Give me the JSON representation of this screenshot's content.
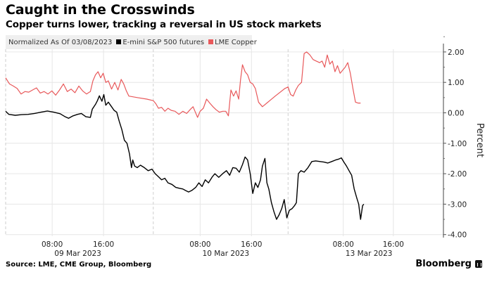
{
  "title": "Caught in the Crosswinds",
  "subtitle": "Copper turns lower, tracking a reversal in US stock markets",
  "legend": {
    "note": "Normalized As Of 03/08/2023",
    "items": [
      {
        "label": "E-mini S&P 500 futures",
        "color": "#000000"
      },
      {
        "label": "LME Copper",
        "color": "#e8585a"
      }
    ]
  },
  "source": "Source: LME, CME Group, Bloomberg",
  "brand": "Bloomberg",
  "chart_data": {
    "type": "line",
    "title": "Caught in the Crosswinds",
    "subtitle": "Copper turns lower, tracking a reversal in US stock markets",
    "xlabel": "",
    "ylabel": "Percent",
    "ylim": [
      -4,
      2.5
    ],
    "yticks": [
      2,
      1,
      0,
      -1,
      -2,
      -3,
      -4
    ],
    "ytick_labels": [
      "2.00",
      "1.00",
      "0.00",
      "-1.00",
      "-2.00",
      "-3.00",
      "-4.00"
    ],
    "y_axis_position": "right",
    "grid": true,
    "legend_position": "top-left",
    "x_unit": "trading-hour index from axis start",
    "xlim": [
      0,
      68
    ],
    "day_separators": [
      23,
      44
    ],
    "xticks": [
      {
        "x": 7.25,
        "label": "08:00",
        "date": "09 Mar 2023"
      },
      {
        "x": 15.25,
        "label": "16:00",
        "date": ""
      },
      {
        "x": 30.3,
        "label": "08:00",
        "date": "10 Mar 2023"
      },
      {
        "x": 38.3,
        "label": "16:00",
        "date": ""
      },
      {
        "x": 52.6,
        "label": "08:00",
        "date": "13 Mar 2023"
      },
      {
        "x": 60.4,
        "label": "16:00",
        "date": ""
      }
    ],
    "series": [
      {
        "name": "E-mini S&P 500 futures",
        "color": "#000000",
        "points": [
          [
            0,
            0.05
          ],
          [
            0.5,
            -0.05
          ],
          [
            1.5,
            -0.08
          ],
          [
            2.5,
            -0.06
          ],
          [
            3.5,
            -0.05
          ],
          [
            4.5,
            -0.02
          ],
          [
            5.5,
            0.02
          ],
          [
            6.5,
            0.06
          ],
          [
            7.5,
            0.02
          ],
          [
            8.5,
            -0.03
          ],
          [
            9.2,
            -0.12
          ],
          [
            9.8,
            -0.18
          ],
          [
            10.5,
            -0.1
          ],
          [
            11.2,
            -0.05
          ],
          [
            11.8,
            -0.02
          ],
          [
            12.5,
            -0.13
          ],
          [
            13.2,
            -0.15
          ],
          [
            13.5,
            0.12
          ],
          [
            14,
            0.28
          ],
          [
            14.3,
            0.4
          ],
          [
            14.6,
            0.56
          ],
          [
            15,
            0.38
          ],
          [
            15.3,
            0.6
          ],
          [
            15.6,
            0.25
          ],
          [
            16,
            0.35
          ],
          [
            16.5,
            0.2
          ],
          [
            16.9,
            0.08
          ],
          [
            17.3,
            0.02
          ],
          [
            17.7,
            -0.28
          ],
          [
            18.1,
            -0.55
          ],
          [
            18.5,
            -0.9
          ],
          [
            18.9,
            -1.0
          ],
          [
            19.3,
            -1.35
          ],
          [
            19.6,
            -1.8
          ],
          [
            19.8,
            -1.55
          ],
          [
            20.1,
            -1.75
          ],
          [
            20.5,
            -1.8
          ],
          [
            21,
            -1.72
          ],
          [
            21.6,
            -1.8
          ],
          [
            22.2,
            -1.9
          ],
          [
            22.8,
            -1.85
          ],
          [
            23.3,
            -2.0
          ],
          [
            23.8,
            -2.1
          ],
          [
            24.3,
            -2.2
          ],
          [
            24.8,
            -2.15
          ],
          [
            25.3,
            -2.3
          ],
          [
            25.9,
            -2.35
          ],
          [
            26.5,
            -2.45
          ],
          [
            27.1,
            -2.48
          ],
          [
            27.6,
            -2.5
          ],
          [
            28,
            -2.55
          ],
          [
            28.5,
            -2.6
          ],
          [
            29,
            -2.55
          ],
          [
            29.6,
            -2.45
          ],
          [
            30.1,
            -2.3
          ],
          [
            30.6,
            -2.42
          ],
          [
            31.1,
            -2.2
          ],
          [
            31.6,
            -2.3
          ],
          [
            32.2,
            -2.1
          ],
          [
            32.6,
            -2.0
          ],
          [
            33.2,
            -2.12
          ],
          [
            33.8,
            -2.0
          ],
          [
            34.4,
            -1.9
          ],
          [
            34.9,
            -2.05
          ],
          [
            35.4,
            -1.8
          ],
          [
            35.9,
            -1.82
          ],
          [
            36.4,
            -1.95
          ],
          [
            36.9,
            -1.7
          ],
          [
            37.3,
            -1.45
          ],
          [
            37.7,
            -1.55
          ],
          [
            38.1,
            -2.0
          ],
          [
            38.5,
            -2.65
          ],
          [
            38.9,
            -2.3
          ],
          [
            39.3,
            -2.45
          ],
          [
            39.7,
            -2.2
          ],
          [
            40,
            -1.75
          ],
          [
            40.4,
            -1.5
          ],
          [
            40.7,
            -2.3
          ],
          [
            41,
            -2.5
          ],
          [
            41.4,
            -2.95
          ],
          [
            41.8,
            -3.25
          ],
          [
            42.2,
            -3.5
          ],
          [
            42.6,
            -3.35
          ],
          [
            43,
            -3.15
          ],
          [
            43.4,
            -2.85
          ],
          [
            43.8,
            -3.45
          ],
          [
            44.2,
            -3.2
          ],
          [
            44.6,
            -3.15
          ],
          [
            45,
            -3.05
          ],
          [
            45.3,
            -2.95
          ],
          [
            45.6,
            -2.0
          ],
          [
            46,
            -1.9
          ],
          [
            46.5,
            -1.95
          ],
          [
            47.1,
            -1.8
          ],
          [
            47.7,
            -1.6
          ],
          [
            48.3,
            -1.58
          ],
          [
            49,
            -1.6
          ],
          [
            49.6,
            -1.62
          ],
          [
            50.2,
            -1.65
          ],
          [
            50.8,
            -1.6
          ],
          [
            51.4,
            -1.55
          ],
          [
            51.9,
            -1.52
          ],
          [
            52.3,
            -1.48
          ],
          [
            52.7,
            -1.62
          ],
          [
            53.1,
            -1.75
          ],
          [
            53.5,
            -1.9
          ],
          [
            53.9,
            -2.05
          ],
          [
            54.3,
            -2.5
          ],
          [
            54.7,
            -2.8
          ],
          [
            55,
            -3.0
          ],
          [
            55.3,
            -3.5
          ],
          [
            55.6,
            -3.05
          ],
          [
            55.8,
            -3.0
          ]
        ]
      },
      {
        "name": "LME Copper",
        "color": "#e8585a",
        "points": [
          [
            0,
            1.15
          ],
          [
            0.6,
            0.95
          ],
          [
            1.2,
            0.88
          ],
          [
            1.8,
            0.8
          ],
          [
            2.4,
            0.62
          ],
          [
            3,
            0.7
          ],
          [
            3.6,
            0.68
          ],
          [
            4.2,
            0.75
          ],
          [
            4.8,
            0.82
          ],
          [
            5.4,
            0.65
          ],
          [
            6,
            0.7
          ],
          [
            6.6,
            0.62
          ],
          [
            7.2,
            0.72
          ],
          [
            7.8,
            0.58
          ],
          [
            8.4,
            0.75
          ],
          [
            9,
            0.95
          ],
          [
            9.6,
            0.7
          ],
          [
            10.2,
            0.78
          ],
          [
            10.8,
            0.66
          ],
          [
            11.4,
            0.88
          ],
          [
            12,
            0.72
          ],
          [
            12.6,
            0.62
          ],
          [
            13.2,
            0.7
          ],
          [
            13.6,
            1.05
          ],
          [
            14,
            1.25
          ],
          [
            14.4,
            1.35
          ],
          [
            14.8,
            1.15
          ],
          [
            15.2,
            1.3
          ],
          [
            15.6,
            1.0
          ],
          [
            16,
            1.05
          ],
          [
            16.5,
            0.78
          ],
          [
            17,
            1.0
          ],
          [
            17.5,
            0.75
          ],
          [
            18,
            1.1
          ],
          [
            18.4,
            0.95
          ],
          [
            18.8,
            0.72
          ],
          [
            19.2,
            0.55
          ],
          [
            20.5,
            0.5
          ],
          [
            22,
            0.45
          ],
          [
            23,
            0.4
          ],
          [
            23.4,
            0.3
          ],
          [
            23.8,
            0.15
          ],
          [
            24.3,
            0.18
          ],
          [
            24.8,
            0.05
          ],
          [
            25.3,
            0.15
          ],
          [
            25.8,
            0.08
          ],
          [
            26.4,
            0.05
          ],
          [
            27,
            -0.05
          ],
          [
            27.6,
            0.05
          ],
          [
            28.2,
            -0.02
          ],
          [
            28.8,
            0.12
          ],
          [
            29.2,
            0.2
          ],
          [
            29.5,
            0.05
          ],
          [
            29.9,
            -0.15
          ],
          [
            30.3,
            0.05
          ],
          [
            30.8,
            0.15
          ],
          [
            31.3,
            0.45
          ],
          [
            31.8,
            0.32
          ],
          [
            32.3,
            0.2
          ],
          [
            32.8,
            0.1
          ],
          [
            33.3,
            0.02
          ],
          [
            33.8,
            0.05
          ],
          [
            34.3,
            0.05
          ],
          [
            34.7,
            -0.1
          ],
          [
            35.1,
            0.75
          ],
          [
            35.5,
            0.55
          ],
          [
            35.9,
            0.72
          ],
          [
            36.3,
            0.45
          ],
          [
            36.6,
            1.1
          ],
          [
            36.9,
            1.58
          ],
          [
            37.3,
            1.35
          ],
          [
            37.7,
            1.25
          ],
          [
            38.1,
            1.0
          ],
          [
            38.5,
            0.95
          ],
          [
            38.9,
            0.8
          ],
          [
            39.4,
            0.35
          ],
          [
            40,
            0.2
          ],
          [
            42,
            0.55
          ],
          [
            43.5,
            0.8
          ],
          [
            44,
            0.85
          ],
          [
            44.4,
            0.6
          ],
          [
            44.8,
            0.55
          ],
          [
            45.2,
            0.75
          ],
          [
            45.6,
            0.9
          ],
          [
            46.1,
            1.0
          ],
          [
            46.5,
            1.95
          ],
          [
            46.9,
            2.0
          ],
          [
            47.4,
            1.9
          ],
          [
            47.9,
            1.75
          ],
          [
            48.4,
            1.7
          ],
          [
            48.9,
            1.65
          ],
          [
            49.3,
            1.7
          ],
          [
            49.7,
            1.5
          ],
          [
            50.1,
            1.9
          ],
          [
            50.5,
            1.6
          ],
          [
            50.9,
            1.7
          ],
          [
            51.3,
            1.35
          ],
          [
            51.7,
            1.55
          ],
          [
            52.1,
            1.3
          ],
          [
            52.5,
            1.4
          ],
          [
            52.9,
            1.5
          ],
          [
            53.3,
            1.65
          ],
          [
            53.7,
            1.3
          ],
          [
            54.1,
            0.8
          ],
          [
            54.5,
            0.35
          ],
          [
            54.9,
            0.32
          ],
          [
            55.3,
            0.32
          ]
        ]
      }
    ]
  }
}
